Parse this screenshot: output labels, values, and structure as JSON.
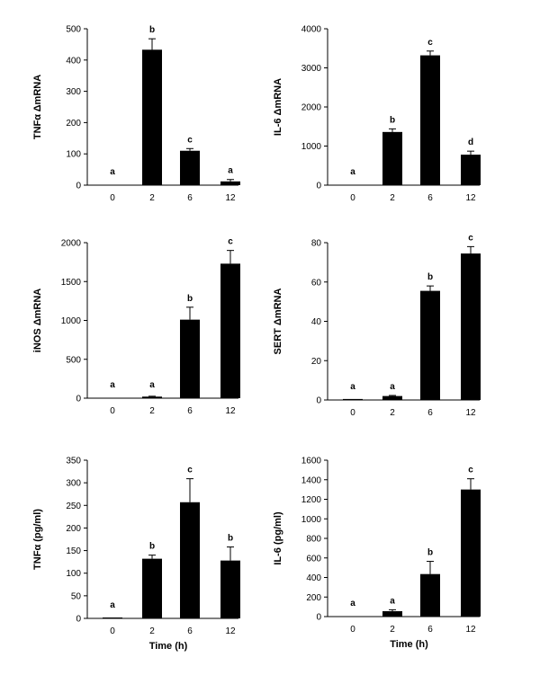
{
  "chart_data": [
    {
      "type": "bar",
      "categories": [
        "0",
        "2",
        "6",
        "12"
      ],
      "values": [
        0,
        433,
        110,
        12
      ],
      "errors": [
        0,
        35,
        7,
        6
      ],
      "significance": [
        "a",
        "b",
        "c",
        "a"
      ],
      "ylabel": "TNFα ΔmRNA",
      "xlabel": "",
      "ylim": [
        0,
        500
      ],
      "yticks": [
        0,
        100,
        200,
        300,
        400,
        500
      ]
    },
    {
      "type": "bar",
      "categories": [
        "0",
        "2",
        "6",
        "12"
      ],
      "values": [
        0,
        1360,
        3320,
        780
      ],
      "errors": [
        0,
        80,
        110,
        90
      ],
      "significance": [
        "a",
        "b",
        "c",
        "d"
      ],
      "ylabel": "IL-6 ΔmRNA",
      "xlabel": "",
      "ylim": [
        0,
        4000
      ],
      "yticks": [
        0,
        1000,
        2000,
        3000,
        4000
      ]
    },
    {
      "type": "bar",
      "categories": [
        "0",
        "2",
        "6",
        "12"
      ],
      "values": [
        0,
        20,
        1010,
        1730
      ],
      "errors": [
        0,
        5,
        160,
        170
      ],
      "significance": [
        "a",
        "a",
        "b",
        "c"
      ],
      "ylabel": "iNOS ΔmRNA",
      "xlabel": "",
      "ylim": [
        0,
        2000
      ],
      "yticks": [
        0,
        500,
        1000,
        1500,
        2000
      ]
    },
    {
      "type": "bar",
      "categories": [
        "0",
        "2",
        "6",
        "12"
      ],
      "values": [
        0.5,
        2,
        55.5,
        74.5
      ],
      "errors": [
        0,
        0.3,
        2.5,
        3.5
      ],
      "significance": [
        "a",
        "a",
        "b",
        "c"
      ],
      "ylabel": "SERT ΔmRNA",
      "xlabel": "",
      "ylim": [
        0,
        80
      ],
      "yticks": [
        0,
        20,
        40,
        60,
        80
      ]
    },
    {
      "type": "bar",
      "categories": [
        "0",
        "2",
        "6",
        "12"
      ],
      "values": [
        2,
        132,
        257,
        128
      ],
      "errors": [
        0,
        8,
        52,
        30
      ],
      "significance": [
        "a",
        "b",
        "c",
        "b"
      ],
      "ylabel": "TNFα (pg/ml)",
      "xlabel": "Time (h)",
      "ylim": [
        0,
        350
      ],
      "yticks": [
        0,
        50,
        100,
        150,
        200,
        250,
        300,
        350
      ]
    },
    {
      "type": "bar",
      "categories": [
        "0",
        "2",
        "6",
        "12"
      ],
      "values": [
        0,
        55,
        435,
        1300
      ],
      "errors": [
        0,
        15,
        130,
        110
      ],
      "significance": [
        "a",
        "a",
        "b",
        "c"
      ],
      "ylabel": "IL-6 (pg/ml)",
      "xlabel": "Time (h)",
      "ylim": [
        0,
        1600
      ],
      "yticks": [
        0,
        200,
        400,
        600,
        800,
        1000,
        1200,
        1400,
        1600
      ]
    }
  ]
}
